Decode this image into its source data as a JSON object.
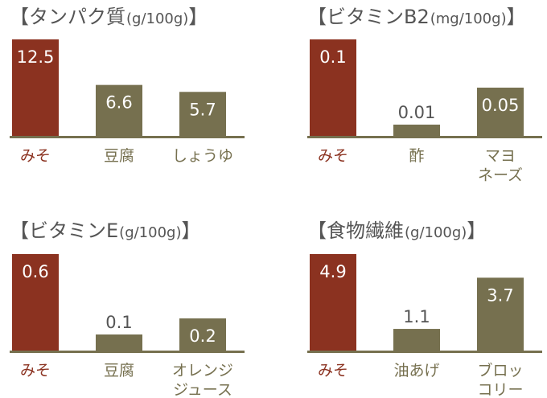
{
  "colors": {
    "miso_bar": "#8b3220",
    "other_bar": "#76704f",
    "axis": "#76704f",
    "miso_label": "#8b3220",
    "other_label": "#76704f",
    "title": "#555555",
    "value_on_bar": "#ffffff",
    "value_above_bar": "#555555"
  },
  "chart_data": [
    {
      "type": "bar",
      "title": "【タンパク質",
      "unit": "(g/100g)",
      "title_close": "】",
      "categories": [
        [
          "みそ"
        ],
        [
          "豆腐"
        ],
        [
          "しょうゆ"
        ]
      ],
      "values": [
        12.5,
        6.6,
        5.7
      ],
      "value_labels": [
        "12.5",
        "6.6",
        "5.7"
      ],
      "highlight_index": 0,
      "ylim": [
        0,
        12.5
      ]
    },
    {
      "type": "bar",
      "title": "【ビタミンB2",
      "unit": "(mg/100g)",
      "title_close": "】",
      "categories": [
        [
          "みそ"
        ],
        [
          "酢"
        ],
        [
          "マヨ",
          "ネーズ"
        ]
      ],
      "values": [
        0.1,
        0.01,
        0.05
      ],
      "value_labels": [
        "0.1",
        "0.01",
        "0.05"
      ],
      "highlight_index": 0,
      "ylim": [
        0,
        0.1
      ]
    },
    {
      "type": "bar",
      "title": "【ビタミンE",
      "unit": "(g/100g)",
      "title_close": "】",
      "categories": [
        [
          "みそ"
        ],
        [
          "豆腐"
        ],
        [
          "オレンジ",
          "ジュース"
        ]
      ],
      "values": [
        0.6,
        0.1,
        0.2
      ],
      "value_labels": [
        "0.6",
        "0.1",
        "0.2"
      ],
      "highlight_index": 0,
      "ylim": [
        0,
        0.6
      ]
    },
    {
      "type": "bar",
      "title": "【食物繊維",
      "unit": "(g/100g)",
      "title_close": "】",
      "categories": [
        [
          "みそ"
        ],
        [
          "油あげ"
        ],
        [
          "ブロッ",
          "コリー"
        ]
      ],
      "values": [
        4.9,
        1.1,
        3.7
      ],
      "value_labels": [
        "4.9",
        "1.1",
        "3.7"
      ],
      "highlight_index": 0,
      "ylim": [
        0,
        4.9
      ]
    }
  ]
}
